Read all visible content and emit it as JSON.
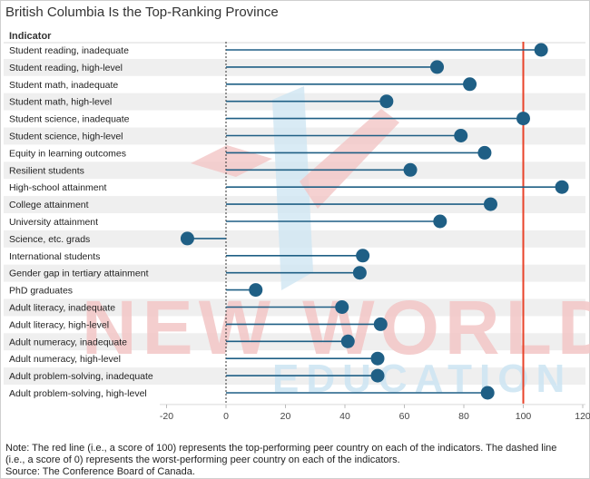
{
  "title": "British Columbia Is the Top-Ranking Province",
  "column_header": "Indicator",
  "watermark": {
    "line1": "NEW WORLD",
    "line2": "EDUCATION"
  },
  "colors": {
    "lollipop": "#1f5f85",
    "reference_line": "#e8432a",
    "band": "#efefef",
    "watermark_red": "#f3c6c6",
    "watermark_blue": "#cfe6f3"
  },
  "chart_data": {
    "type": "lollipop",
    "title": "British Columbia Is the Top-Ranking Province",
    "categories": [
      "Student reading, inadequate",
      "Student reading, high-level",
      "Student math, inadequate",
      "Student math, high-level",
      "Student science, inadequate",
      "Student science, high-level",
      "Equity in learning outcomes",
      "Resilient students",
      "High-school attainment",
      "College attainment",
      "University attainment",
      "Science, etc. grads",
      "International students",
      "Gender gap in tertiary attainment",
      "PhD graduates",
      "Adult literacy, inadequate",
      "Adult literacy, high-level",
      "Adult numeracy, inadequate",
      "Adult numeracy, high-level",
      "Adult problem-solving, inadequate",
      "Adult problem-solving, high-level"
    ],
    "values": [
      106,
      71,
      82,
      54,
      100,
      79,
      87,
      62,
      113,
      89,
      72,
      -13,
      46,
      45,
      10,
      39,
      52,
      41,
      51,
      51,
      88
    ],
    "xlim": [
      -22,
      123
    ],
    "xticks": [
      -20,
      0,
      20,
      40,
      60,
      80,
      100,
      120
    ],
    "reference_lines": [
      {
        "x": 100,
        "style": "solid",
        "color": "#e8432a"
      },
      {
        "x": 0,
        "style": "dashed",
        "color": "#333333"
      }
    ],
    "grid": false
  },
  "notes": [
    "Note: The red line (i.e., a score of 100) represents the top-performing peer country on each of the indicators. The dashed line",
    "(i.e., a score of 0) represents the worst-performing peer country on each of the indicators.",
    "Source: The Conference Board of Canada."
  ]
}
